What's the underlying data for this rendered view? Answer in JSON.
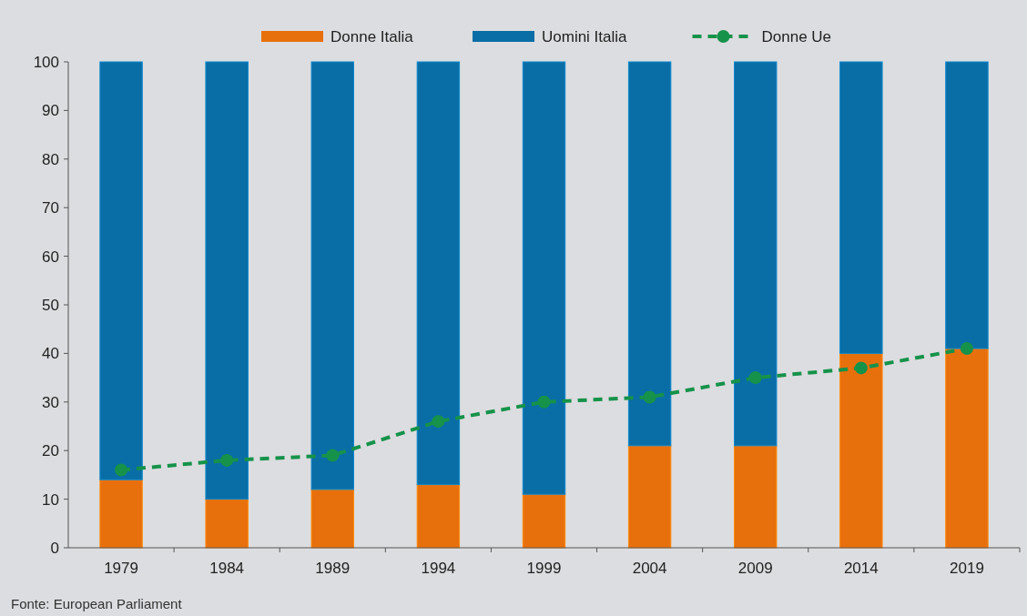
{
  "chart_data": {
    "type": "bar",
    "stacked": true,
    "categories": [
      "1979",
      "1984",
      "1989",
      "1994",
      "1999",
      "2004",
      "2009",
      "2014",
      "2019"
    ],
    "series": [
      {
        "name": "Donne Italia",
        "color": "#e8700c",
        "values": [
          14,
          10,
          12,
          13,
          11,
          21,
          21,
          40,
          41
        ]
      },
      {
        "name": "Uomini Italia",
        "color": "#0a6ea6",
        "values": [
          86,
          90,
          88,
          87,
          89,
          79,
          79,
          60,
          59
        ]
      },
      {
        "name": "Donne Ue",
        "type": "line",
        "color": "#16924a",
        "values": [
          16,
          18,
          19,
          26,
          30,
          31,
          35,
          37,
          41
        ],
        "marker": "circle",
        "line_style": "dashed"
      }
    ],
    "ylim": [
      0,
      100
    ],
    "yticks": [
      0,
      10,
      20,
      30,
      40,
      50,
      60,
      70,
      80,
      90,
      100
    ],
    "grid": false,
    "legend": "top",
    "annotations": [
      "Fonte: European Parliament"
    ]
  }
}
